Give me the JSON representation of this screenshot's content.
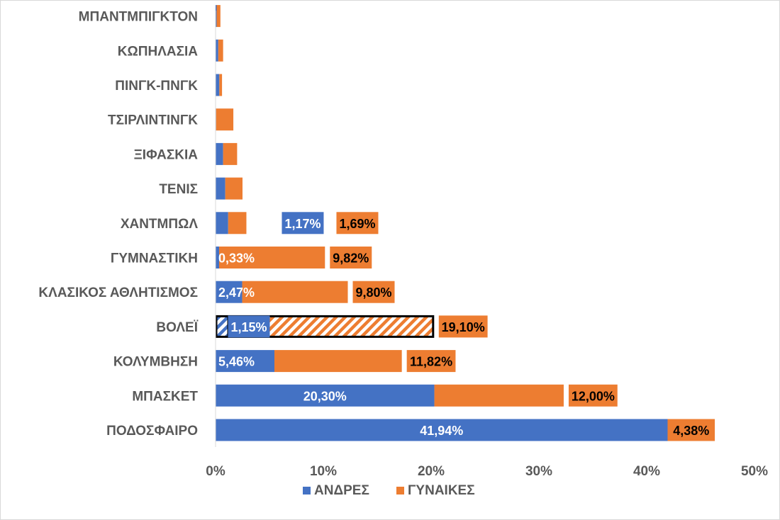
{
  "chart_data": {
    "type": "bar",
    "orientation": "horizontal",
    "stacked": true,
    "categories": [
      "ΠΟΔΟΣΦΑΙΡΟ",
      "ΜΠΑΣΚΕΤ",
      "ΚΟΛΥΜΒΗΣΗ",
      "ΒΟΛΕΪ",
      "ΚΛΑΣΙΚΟΣ ΑΘΛΗΤΙΣΜΟΣ",
      "ΓΥΜΝΑΣΤΙΚΗ",
      "ΧΑΝΤΜΠΩΛ",
      "ΤΕΝΙΣ",
      "ΞΙΦΑΣΚΙΑ",
      "ΤΣΙΡΛΙΝΤΙΝΓΚ",
      "ΠΙΝΓΚ-ΠΝΓΚ",
      "ΚΩΠΗΛΑΣΙΑ",
      "ΜΠΑΝΤΜΠΙΓΚΤΟΝ"
    ],
    "series": [
      {
        "name": "ΑΝΔΡΕΣ",
        "color": "#4472c4",
        "values": [
          41.94,
          20.3,
          5.46,
          1.15,
          2.47,
          0.33,
          1.17,
          0.9,
          0.7,
          0.05,
          0.35,
          0.25,
          0.1
        ],
        "labels": [
          "41,94%",
          "20,30%",
          "5,46%",
          "1,15%",
          "2,47%",
          "0,33%",
          "1,17%",
          "",
          "",
          "",
          "",
          "",
          ""
        ]
      },
      {
        "name": "ΓΥΝΑΙΚΕΣ",
        "color": "#ed7d31",
        "values": [
          4.38,
          12.0,
          11.82,
          19.1,
          9.8,
          9.82,
          1.69,
          1.6,
          1.3,
          1.6,
          0.25,
          0.45,
          0.35
        ],
        "labels": [
          "4,38%",
          "12,00%",
          "11,82%",
          "19,10%",
          "9,80%",
          "9,82%",
          "1,69%",
          "",
          "",
          "",
          "",
          "",
          ""
        ]
      }
    ],
    "xlim": [
      0,
      50
    ],
    "xticks": [
      0,
      10,
      20,
      30,
      40,
      50
    ],
    "xtick_labels": [
      "0%",
      "10%",
      "20%",
      "30%",
      "40%",
      "50%"
    ],
    "highlighted_category": "ΒΟΛΕΪ",
    "highlight_style": "hatched",
    "grid": false,
    "legend_position": "bottom",
    "title": "",
    "xlabel": "",
    "ylabel": ""
  }
}
